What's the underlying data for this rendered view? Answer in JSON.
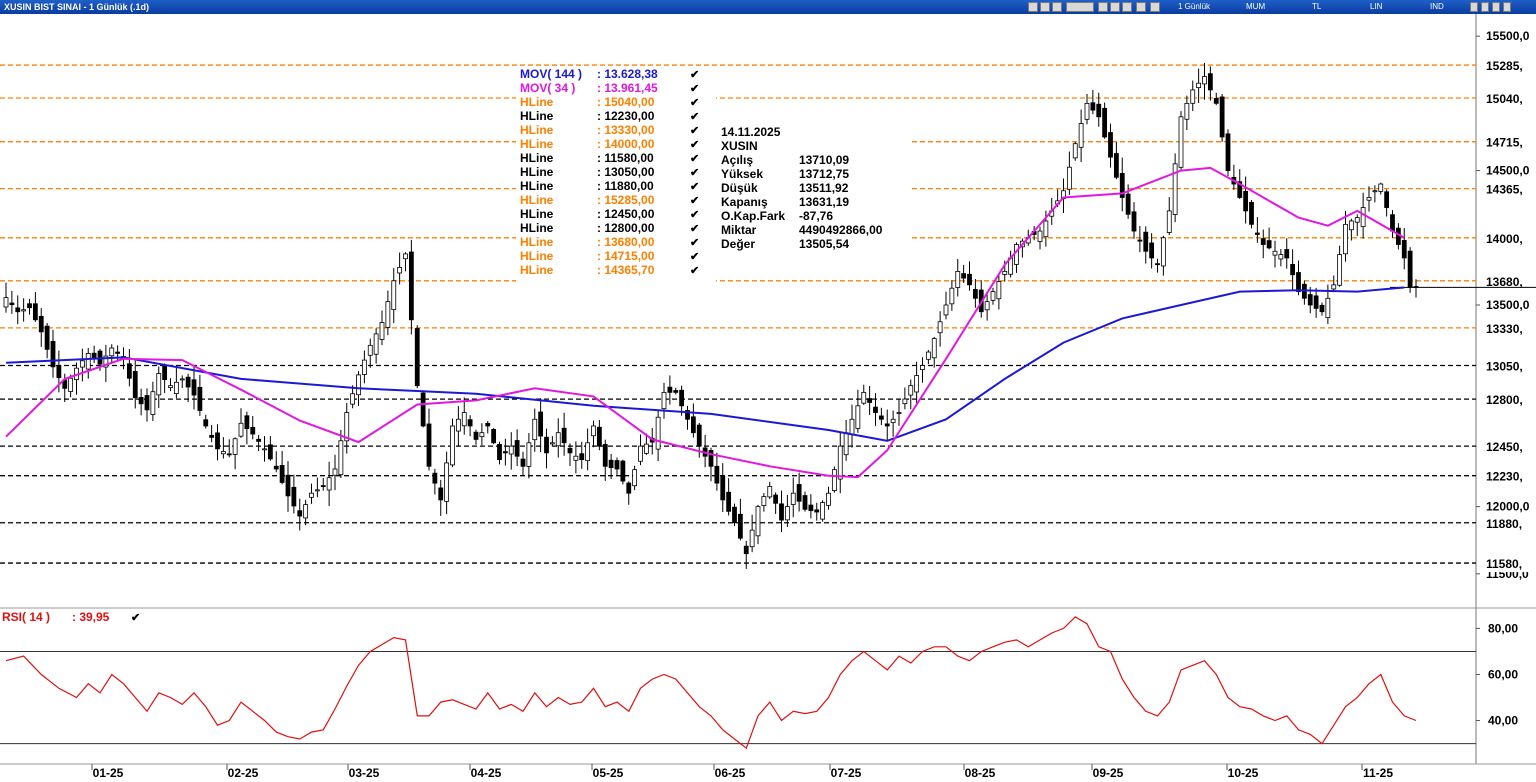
{
  "window": {
    "title": "XUSIN BIST SINAI - 1 Günlük (.1d)",
    "toolbar": [
      "1 Günlük",
      "MUM",
      "TL",
      "LIN",
      "IND"
    ]
  },
  "chart_data": {
    "type": "candlestick",
    "symbol": "XUSIN",
    "ylim": [
      11350,
      15650
    ],
    "y_ticks": [
      "15500,0",
      "14500,0",
      "13500,0",
      "12000,0",
      "11500,0"
    ],
    "x_ticks": [
      "01-25",
      "02-25",
      "03-25",
      "04-25",
      "05-25",
      "06-25",
      "07-25",
      "08-25",
      "09-25",
      "10-25",
      "11-25"
    ],
    "close_path": [
      [
        0,
        13555
      ],
      [
        2,
        13450
      ],
      [
        4,
        13480
      ],
      [
        6,
        13300
      ],
      [
        8,
        13040
      ],
      [
        10,
        12880
      ],
      [
        12,
        13030
      ],
      [
        14,
        13140
      ],
      [
        16,
        13060
      ],
      [
        18,
        13180
      ],
      [
        20,
        13100
      ],
      [
        22,
        12810
      ],
      [
        24,
        12720
      ],
      [
        26,
        12990
      ],
      [
        28,
        12900
      ],
      [
        30,
        12950
      ],
      [
        32,
        12830
      ],
      [
        34,
        12600
      ],
      [
        36,
        12430
      ],
      [
        38,
        12390
      ],
      [
        40,
        12620
      ],
      [
        42,
        12540
      ],
      [
        44,
        12430
      ],
      [
        46,
        12280
      ],
      [
        48,
        12080
      ],
      [
        50,
        11930
      ],
      [
        52,
        12100
      ],
      [
        54,
        12150
      ],
      [
        56,
        12280
      ],
      [
        58,
        12700
      ],
      [
        60,
        12980
      ],
      [
        62,
        13200
      ],
      [
        64,
        13370
      ],
      [
        66,
        13680
      ],
      [
        68,
        13880
      ],
      [
        70,
        12900
      ],
      [
        72,
        12300
      ],
      [
        74,
        12050
      ],
      [
        76,
        12600
      ],
      [
        78,
        12700
      ],
      [
        80,
        12500
      ],
      [
        82,
        12600
      ],
      [
        84,
        12350
      ],
      [
        86,
        12450
      ],
      [
        88,
        12300
      ],
      [
        90,
        12650
      ],
      [
        92,
        12400
      ],
      [
        94,
        12550
      ],
      [
        96,
        12400
      ],
      [
        98,
        12350
      ],
      [
        100,
        12600
      ],
      [
        102,
        12300
      ],
      [
        104,
        12280
      ],
      [
        106,
        12100
      ],
      [
        108,
        12450
      ],
      [
        110,
        12480
      ],
      [
        112,
        12850
      ],
      [
        114,
        12850
      ],
      [
        116,
        12650
      ],
      [
        118,
        12450
      ],
      [
        120,
        12300
      ],
      [
        122,
        12050
      ],
      [
        124,
        11880
      ],
      [
        126,
        11650
      ],
      [
        128,
        12000
      ],
      [
        130,
        12150
      ],
      [
        132,
        11900
      ],
      [
        134,
        12100
      ],
      [
        136,
        11980
      ],
      [
        138,
        11960
      ],
      [
        140,
        12100
      ],
      [
        142,
        12450
      ],
      [
        144,
        12650
      ],
      [
        146,
        12850
      ],
      [
        148,
        12700
      ],
      [
        150,
        12600
      ],
      [
        152,
        12700
      ],
      [
        154,
        12900
      ],
      [
        156,
        13050
      ],
      [
        158,
        13250
      ],
      [
        160,
        13500
      ],
      [
        162,
        13750
      ],
      [
        164,
        13650
      ],
      [
        166,
        13450
      ],
      [
        168,
        13600
      ],
      [
        170,
        13750
      ],
      [
        172,
        13950
      ],
      [
        174,
        14000
      ],
      [
        176,
        14050
      ],
      [
        178,
        14200
      ],
      [
        180,
        14350
      ],
      [
        182,
        14700
      ],
      [
        184,
        15000
      ],
      [
        186,
        14900
      ],
      [
        188,
        14600
      ],
      [
        190,
        14300
      ],
      [
        192,
        14050
      ],
      [
        194,
        13900
      ],
      [
        196,
        13800
      ],
      [
        198,
        14200
      ],
      [
        200,
        14900
      ],
      [
        202,
        15100
      ],
      [
        204,
        15200
      ],
      [
        206,
        15000
      ],
      [
        208,
        14500
      ],
      [
        210,
        14300
      ],
      [
        212,
        14100
      ],
      [
        214,
        13950
      ],
      [
        216,
        13900
      ],
      [
        218,
        13850
      ],
      [
        220,
        13600
      ],
      [
        222,
        13500
      ],
      [
        224,
        13450
      ],
      [
        226,
        13650
      ],
      [
        228,
        14100
      ],
      [
        230,
        14150
      ],
      [
        232,
        14300
      ],
      [
        234,
        14400
      ],
      [
        236,
        14050
      ],
      [
        238,
        13850
      ],
      [
        239,
        13631
      ]
    ],
    "series": [
      {
        "name": "MOV( 144 )",
        "value": "13.628,38",
        "color": "#1a1ad6",
        "points": [
          [
            0,
            13070
          ],
          [
            20,
            13110
          ],
          [
            40,
            12950
          ],
          [
            60,
            12880
          ],
          [
            70,
            12860
          ],
          [
            80,
            12840
          ],
          [
            100,
            12750
          ],
          [
            120,
            12690
          ],
          [
            140,
            12570
          ],
          [
            150,
            12490
          ],
          [
            160,
            12650
          ],
          [
            170,
            12950
          ],
          [
            180,
            13220
          ],
          [
            190,
            13400
          ],
          [
            200,
            13500
          ],
          [
            210,
            13600
          ],
          [
            220,
            13610
          ],
          [
            230,
            13600
          ],
          [
            238,
            13630
          ]
        ]
      },
      {
        "name": "MOV( 34 )",
        "value": "13.961,45",
        "color": "#e018e0",
        "points": [
          [
            0,
            12520
          ],
          [
            10,
            12950
          ],
          [
            20,
            13100
          ],
          [
            30,
            13090
          ],
          [
            40,
            12870
          ],
          [
            50,
            12640
          ],
          [
            60,
            12480
          ],
          [
            70,
            12760
          ],
          [
            80,
            12790
          ],
          [
            90,
            12880
          ],
          [
            100,
            12820
          ],
          [
            110,
            12500
          ],
          [
            120,
            12390
          ],
          [
            130,
            12300
          ],
          [
            140,
            12230
          ],
          [
            145,
            12220
          ],
          [
            150,
            12420
          ],
          [
            160,
            13100
          ],
          [
            170,
            13800
          ],
          [
            180,
            14300
          ],
          [
            190,
            14330
          ],
          [
            200,
            14500
          ],
          [
            205,
            14520
          ],
          [
            210,
            14400
          ],
          [
            220,
            14150
          ],
          [
            225,
            14090
          ],
          [
            230,
            14200
          ],
          [
            238,
            14000
          ]
        ]
      }
    ],
    "hlines": [
      {
        "label": "HLine",
        "value": "15040,00",
        "price": 15040,
        "color": "#ff8000",
        "axis": "15040,"
      },
      {
        "label": "HLine",
        "value": "12230,00",
        "price": 12230,
        "color": "#000000",
        "axis": "12230,"
      },
      {
        "label": "HLine",
        "value": "13330,00",
        "price": 13330,
        "color": "#ff8000",
        "axis": "13330,"
      },
      {
        "label": "HLine",
        "value": "14000,00",
        "price": 14000,
        "color": "#ff8000",
        "axis": "14000,"
      },
      {
        "label": "HLine",
        "value": "11580,00",
        "price": 11580,
        "color": "#000000",
        "axis": "11580,"
      },
      {
        "label": "HLine",
        "value": "13050,00",
        "price": 13050,
        "color": "#000000",
        "axis": "13050,"
      },
      {
        "label": "HLine",
        "value": "11880,00",
        "price": 11880,
        "color": "#000000",
        "axis": "11880,"
      },
      {
        "label": "HLine",
        "value": "15285,00",
        "price": 15285,
        "color": "#ff8000",
        "axis": "15285,"
      },
      {
        "label": "HLine",
        "value": "12450,00",
        "price": 12450,
        "color": "#000000",
        "axis": "12450,"
      },
      {
        "label": "HLine",
        "value": "12800,00",
        "price": 12800,
        "color": "#000000",
        "axis": "12800,"
      },
      {
        "label": "HLine",
        "value": "13680,00",
        "price": 13680,
        "color": "#ff8000",
        "axis": "13680,"
      },
      {
        "label": "HLine",
        "value": "14715,00",
        "price": 14715,
        "color": "#ff8000",
        "axis": "14715,"
      },
      {
        "label": "HLine",
        "value": "14365,70",
        "price": 14365.7,
        "color": "#ff8000",
        "axis": "14365,"
      }
    ],
    "info": {
      "date": "14.11.2025",
      "symbol": "XUSIN",
      "rows": [
        {
          "label": "Açılış",
          "value": "13710,09"
        },
        {
          "label": "Yüksek",
          "value": "13712,75"
        },
        {
          "label": "Düşük",
          "value": "13511,92"
        },
        {
          "label": "Kapanış",
          "value": "13631,19"
        },
        {
          "label": "O.Kap.Fark",
          "value": "-87,76"
        },
        {
          "label": "Miktar",
          "value": "4490492866,00"
        },
        {
          "label": "Değer",
          "value": "13505,54"
        }
      ]
    },
    "rsi": {
      "name": "RSI( 14 )",
      "value": "39,95",
      "color": "#e01010",
      "ylim": [
        22,
        88
      ],
      "levels": [
        70,
        30
      ],
      "y_ticks": [
        "80,00",
        "60,00",
        "40,00"
      ],
      "points": [
        [
          0,
          66
        ],
        [
          3,
          68
        ],
        [
          6,
          60
        ],
        [
          9,
          54
        ],
        [
          12,
          50
        ],
        [
          14,
          56
        ],
        [
          16,
          52
        ],
        [
          18,
          60
        ],
        [
          20,
          56
        ],
        [
          22,
          50
        ],
        [
          24,
          44
        ],
        [
          26,
          52
        ],
        [
          28,
          50
        ],
        [
          30,
          47
        ],
        [
          32,
          52
        ],
        [
          34,
          46
        ],
        [
          36,
          38
        ],
        [
          38,
          40
        ],
        [
          40,
          48
        ],
        [
          42,
          44
        ],
        [
          44,
          40
        ],
        [
          46,
          35
        ],
        [
          48,
          33
        ],
        [
          50,
          32
        ],
        [
          52,
          35
        ],
        [
          54,
          36
        ],
        [
          56,
          45
        ],
        [
          58,
          55
        ],
        [
          60,
          64
        ],
        [
          62,
          70
        ],
        [
          64,
          73
        ],
        [
          66,
          76
        ],
        [
          68,
          75
        ],
        [
          70,
          42
        ],
        [
          72,
          42
        ],
        [
          74,
          48
        ],
        [
          76,
          49
        ],
        [
          78,
          47
        ],
        [
          80,
          45
        ],
        [
          82,
          52
        ],
        [
          84,
          45
        ],
        [
          86,
          47
        ],
        [
          88,
          44
        ],
        [
          90,
          52
        ],
        [
          92,
          46
        ],
        [
          94,
          50
        ],
        [
          96,
          47
        ],
        [
          98,
          48
        ],
        [
          100,
          54
        ],
        [
          102,
          46
        ],
        [
          104,
          48
        ],
        [
          106,
          44
        ],
        [
          108,
          54
        ],
        [
          110,
          58
        ],
        [
          112,
          60
        ],
        [
          114,
          58
        ],
        [
          116,
          52
        ],
        [
          118,
          46
        ],
        [
          120,
          42
        ],
        [
          122,
          36
        ],
        [
          124,
          32
        ],
        [
          126,
          28
        ],
        [
          128,
          42
        ],
        [
          130,
          48
        ],
        [
          132,
          40
        ],
        [
          134,
          44
        ],
        [
          136,
          43
        ],
        [
          138,
          44
        ],
        [
          140,
          50
        ],
        [
          142,
          60
        ],
        [
          144,
          66
        ],
        [
          146,
          70
        ],
        [
          148,
          66
        ],
        [
          150,
          62
        ],
        [
          152,
          68
        ],
        [
          154,
          65
        ],
        [
          156,
          70
        ],
        [
          158,
          72
        ],
        [
          160,
          72
        ],
        [
          162,
          68
        ],
        [
          164,
          66
        ],
        [
          166,
          70
        ],
        [
          168,
          72
        ],
        [
          170,
          74
        ],
        [
          172,
          75
        ],
        [
          174,
          72
        ],
        [
          176,
          75
        ],
        [
          178,
          78
        ],
        [
          180,
          80
        ],
        [
          182,
          85
        ],
        [
          184,
          82
        ],
        [
          186,
          72
        ],
        [
          188,
          70
        ],
        [
          190,
          58
        ],
        [
          192,
          50
        ],
        [
          194,
          44
        ],
        [
          196,
          42
        ],
        [
          198,
          48
        ],
        [
          200,
          62
        ],
        [
          202,
          64
        ],
        [
          204,
          66
        ],
        [
          206,
          60
        ],
        [
          208,
          50
        ],
        [
          210,
          46
        ],
        [
          212,
          45
        ],
        [
          214,
          42
        ],
        [
          216,
          40
        ],
        [
          218,
          42
        ],
        [
          220,
          36
        ],
        [
          222,
          34
        ],
        [
          224,
          30
        ],
        [
          226,
          38
        ],
        [
          228,
          46
        ],
        [
          230,
          50
        ],
        [
          232,
          56
        ],
        [
          234,
          60
        ],
        [
          236,
          48
        ],
        [
          238,
          42
        ],
        [
          240,
          40
        ]
      ]
    }
  }
}
